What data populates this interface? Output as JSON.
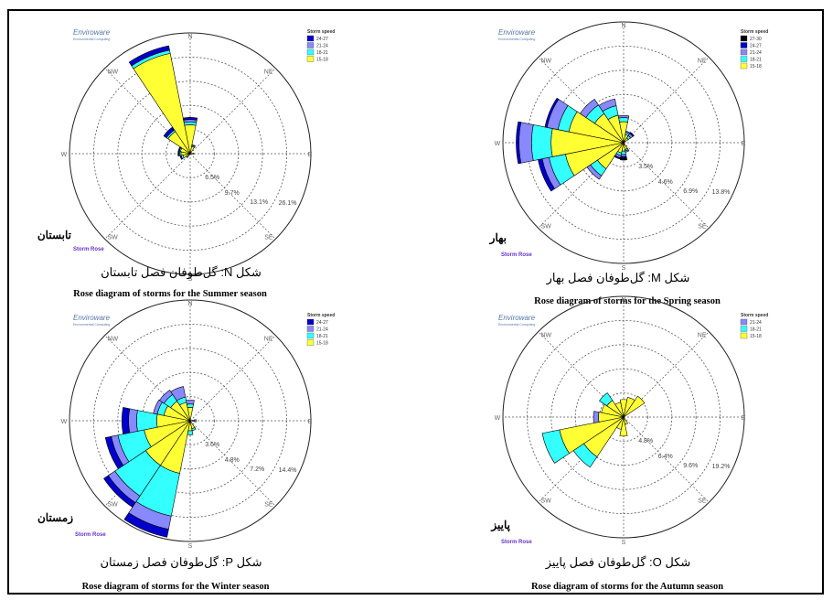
{
  "colors": {
    "s15_18": "#ffff33",
    "s18_21": "#33ffff",
    "s21_24": "#8888ff",
    "s24_27": "#0000cc",
    "s27_30": "#000000",
    "grid": "#555555",
    "dirLabel": "#666666",
    "stormRose": "#6633cc",
    "logo": "#5577aa"
  },
  "common": {
    "logo_name": "Enviroware",
    "logo_sub": "Environmental Computing",
    "storm_rose": "Storm Rose",
    "legend_title": "Storm speed",
    "directions": [
      "N",
      "NE",
      "E",
      "SE",
      "S",
      "SW",
      "W",
      "NW"
    ]
  },
  "chart_data": [
    {
      "type": "rose",
      "id": "summer",
      "season_label_fa": "تابستان",
      "caption_fa": "شکل N: گل‌طوفان فصل تابستان",
      "caption_en": "Rose diagram of storms for the Summer season",
      "ring_labels": [
        "6.5%",
        "9.7%",
        "13.1%",
        "26.1%"
      ],
      "rmax_pct": 32.6,
      "legend": [
        "24-27",
        "21-24",
        "18-21",
        "15-18"
      ],
      "petals": [
        {
          "dir": "NNW",
          "bands": [
            27.6,
            0.9,
            0,
            1.2
          ]
        },
        {
          "dir": "NW",
          "bands": [
            7.2,
            0.5,
            0,
            0.9
          ]
        },
        {
          "dir": "N",
          "bands": [
            7.8,
            0.8,
            0.6,
            0.6
          ]
        },
        {
          "dir": "NNE",
          "bands": [
            2.0,
            0.3,
            0.2,
            0
          ]
        },
        {
          "dir": "WNW",
          "bands": [
            2.7,
            0.3,
            0,
            0.3
          ]
        },
        {
          "dir": "W",
          "bands": [
            2.5,
            0.4,
            0.2,
            0.2
          ]
        },
        {
          "dir": "WSW",
          "bands": [
            2.0,
            0.5,
            0,
            0.3
          ]
        },
        {
          "dir": "SW",
          "bands": [
            1.0,
            0.3,
            0,
            0
          ]
        },
        {
          "dir": "E",
          "bands": [
            1.0,
            0,
            0,
            0
          ]
        }
      ]
    },
    {
      "type": "rose",
      "id": "spring",
      "season_label_fa": "بهار",
      "caption_fa": "شکل M: گل‌طوفان فصل بهار",
      "caption_en": "Rose diagram of storms for the Spring season",
      "ring_labels": [
        "3.5%",
        "4.6%",
        "6.9%",
        "13.8%"
      ],
      "rmax_pct": 17.3,
      "legend": [
        "27-30",
        "24-27",
        "21-24",
        "18-21",
        "15-18"
      ],
      "petals": [
        {
          "dir": "W",
          "bands": [
            10.4,
            2.8,
            1.8,
            0.4,
            0
          ]
        },
        {
          "dir": "WNW",
          "bands": [
            8.0,
            1.6,
            1.6,
            0.3,
            0
          ]
        },
        {
          "dir": "WSW",
          "bands": [
            8.5,
            2.4,
            1.0,
            0.6,
            0
          ]
        },
        {
          "dir": "NW",
          "bands": [
            5.0,
            1.5,
            1.0,
            0,
            0
          ]
        },
        {
          "dir": "NNW",
          "bands": [
            4.0,
            1.4,
            1.0,
            0,
            0
          ]
        },
        {
          "dir": "N",
          "bands": [
            3.0,
            0.6,
            0.3,
            0,
            0
          ]
        },
        {
          "dir": "SW",
          "bands": [
            4.5,
            1.2,
            0.6,
            0,
            0
          ]
        },
        {
          "dir": "SSW",
          "bands": [
            1.5,
            0.4,
            0.3,
            0.2,
            0
          ]
        },
        {
          "dir": "S",
          "bands": [
            1.2,
            0.5,
            0.3,
            0.2,
            0.3
          ]
        },
        {
          "dir": "NNE",
          "bands": [
            1.2,
            0.3,
            0.2,
            0,
            0
          ]
        },
        {
          "dir": "NE",
          "bands": [
            0.8,
            0.4,
            0.4,
            0.2,
            0
          ]
        },
        {
          "dir": "SSE",
          "bands": [
            1.0,
            0.2,
            0.2,
            0,
            0
          ]
        }
      ]
    },
    {
      "type": "rose",
      "id": "winter",
      "season_label_fa": "زمستان",
      "caption_fa": "شکل P: گل‌طوفان فصل زمستان",
      "caption_en": "Rose diagram of storms for the Winter season",
      "ring_labels": [
        "3.6%",
        "4.8%",
        "7.2%",
        "14.4%"
      ],
      "rmax_pct": 18.0,
      "legend": [
        "24-27",
        "21-24",
        "18-21",
        "15-18"
      ],
      "petals": [
        {
          "dir": "SSW",
          "bands": [
            8.0,
            6.5,
            2.0,
            1.2
          ]
        },
        {
          "dir": "SW",
          "bands": [
            8.0,
            5.5,
            1.2,
            0.8
          ]
        },
        {
          "dir": "WSW",
          "bands": [
            7.0,
            4.0,
            1.0,
            0.9
          ]
        },
        {
          "dir": "W",
          "bands": [
            5.0,
            3.0,
            1.2,
            1.0
          ]
        },
        {
          "dir": "WNW",
          "bands": [
            4.0,
            1.0,
            0.6,
            0
          ]
        },
        {
          "dir": "NW",
          "bands": [
            3.5,
            1.2,
            0.8,
            0
          ]
        },
        {
          "dir": "NNW",
          "bands": [
            2.8,
            0.8,
            1.6,
            0
          ]
        },
        {
          "dir": "N",
          "bands": [
            2.0,
            0.5,
            0.6,
            0
          ]
        },
        {
          "dir": "S",
          "bands": [
            1.5,
            0.6,
            0,
            0
          ]
        },
        {
          "dir": "SSE",
          "bands": [
            1.2,
            0.3,
            0,
            0
          ]
        },
        {
          "dir": "E",
          "bands": [
            0.4,
            0.2,
            0.3,
            0
          ]
        }
      ]
    },
    {
      "type": "rose",
      "id": "autumn",
      "season_label_fa": "پاییز",
      "caption_fa": "شکل O: گل‌طوفان فصل پاییز",
      "caption_en": "Rose diagram of storms for the Autumn season",
      "ring_labels": [
        "4.8%",
        "6.4%",
        "9.6%",
        "19.2%"
      ],
      "rmax_pct": 24.0,
      "legend": [
        "21-24",
        "18-21",
        "15-18"
      ],
      "petals": [
        {
          "dir": "WSW",
          "bands": [
            13.0,
            3.5,
            0
          ]
        },
        {
          "dir": "SW",
          "bands": [
            9.5,
            2.5,
            0
          ]
        },
        {
          "dir": "W",
          "bands": [
            5.0,
            0,
            1.0
          ]
        },
        {
          "dir": "WNW",
          "bands": [
            4.5,
            0,
            0
          ]
        },
        {
          "dir": "NW",
          "bands": [
            4.0,
            1.8,
            0
          ]
        },
        {
          "dir": "NNW",
          "bands": [
            3.0,
            0,
            0
          ]
        },
        {
          "dir": "N",
          "bands": [
            3.5,
            0,
            0
          ]
        },
        {
          "dir": "NNE",
          "bands": [
            4.0,
            0,
            0
          ]
        },
        {
          "dir": "NE",
          "bands": [
            5.0,
            0,
            0
          ]
        },
        {
          "dir": "S",
          "bands": [
            3.8,
            0,
            0
          ]
        },
        {
          "dir": "SSW",
          "bands": [
            2.5,
            0,
            0
          ]
        },
        {
          "dir": "SSE",
          "bands": [
            1.5,
            0,
            0
          ]
        }
      ]
    }
  ]
}
